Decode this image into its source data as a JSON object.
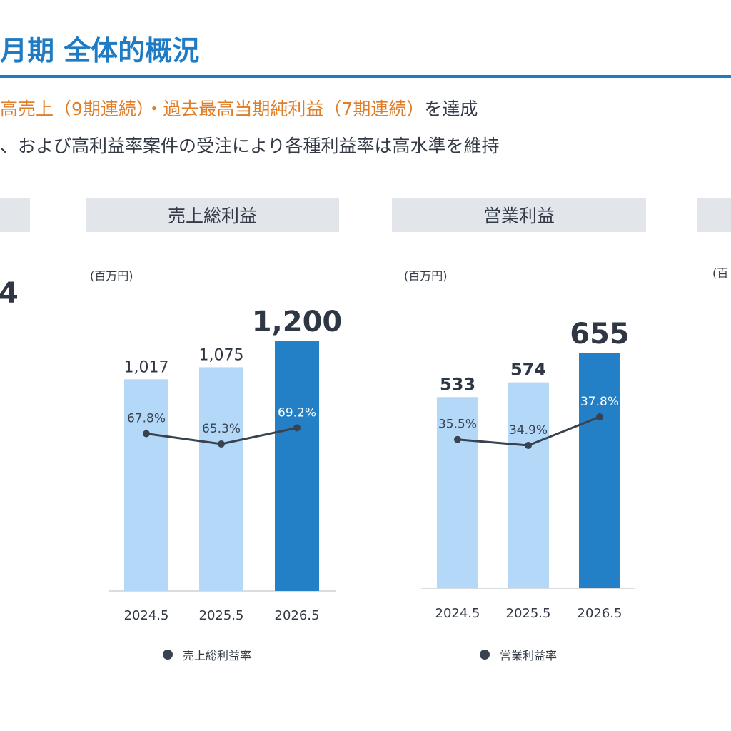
{
  "header": {
    "title": "月期 全体的概況",
    "line1_highlight": "高売上（9期連続）・過去最高当期純利益（7期連続）",
    "line1_tail": "を達成",
    "line2": "、および高利益率案件の受注により各種利益率は高水準を維持"
  },
  "left_panel": {
    "big_value_fragment": "4"
  },
  "right_panel": {
    "unit_fragment": "(百"
  },
  "colors": {
    "accent": "#1e7bc4",
    "highlight": "#e07e28",
    "bar_light": "#b3d8f8",
    "bar_dark": "#2480c6",
    "line": "#3a4250",
    "panel_bg": "#e2e6eb"
  },
  "chart_data": [
    {
      "type": "bar",
      "title": "売上総利益",
      "unit_label": "(百万円)",
      "categories": [
        "2024.5",
        "2025.5",
        "2026.5"
      ],
      "values": [
        1017,
        1075,
        1200
      ],
      "value_labels": [
        "1,017",
        "1,075",
        "1,200"
      ],
      "rate_series": {
        "name": "売上総利益率",
        "values": [
          67.8,
          65.3,
          69.2
        ],
        "labels": [
          "67.8%",
          "65.3%",
          "69.2%"
        ]
      },
      "highlight_index": 2,
      "grid": false,
      "legend": "bottom-center"
    },
    {
      "type": "bar",
      "title": "営業利益",
      "unit_label": "(百万円)",
      "categories": [
        "2024.5",
        "2025.5",
        "2026.5"
      ],
      "values": [
        533,
        574,
        655
      ],
      "value_labels": [
        "533",
        "574",
        "655"
      ],
      "rate_series": {
        "name": "営業利益率",
        "values": [
          35.5,
          34.9,
          37.8
        ],
        "labels": [
          "35.5%",
          "34.9%",
          "37.8%"
        ]
      },
      "highlight_index": 2,
      "grid": false,
      "legend": "bottom-center"
    }
  ]
}
